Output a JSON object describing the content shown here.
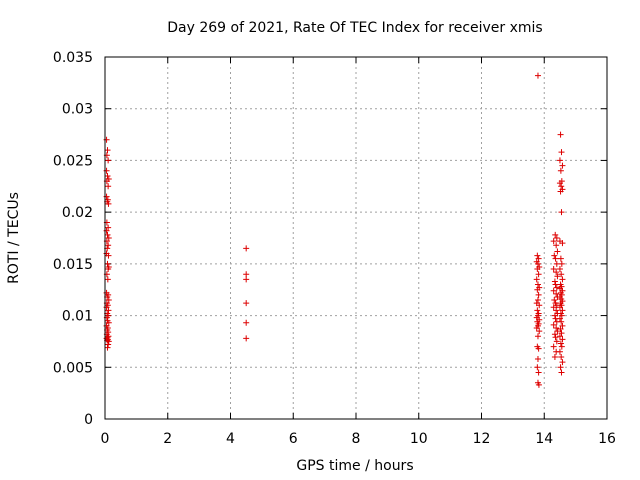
{
  "chart_data": {
    "type": "scatter",
    "title": "Day 269 of 2021, Rate Of TEC Index for receiver xmis",
    "xlabel": "GPS time / hours",
    "ylabel": "ROTI / TECUs",
    "xlim": [
      0,
      16
    ],
    "ylim": [
      0,
      0.035
    ],
    "x_ticks": [
      "0",
      "2",
      "4",
      "6",
      "8",
      "10",
      "12",
      "14",
      "16"
    ],
    "y_ticks": [
      "0",
      "0.005",
      "0.01",
      "0.015",
      "0.02",
      "0.025",
      "0.03",
      "0.035"
    ],
    "grid": true,
    "marker": "plus",
    "color": "#dd0000",
    "points": [
      [
        0.05,
        0.027
      ],
      [
        0.08,
        0.026
      ],
      [
        0.06,
        0.0255
      ],
      [
        0.1,
        0.025
      ],
      [
        0.05,
        0.024
      ],
      [
        0.08,
        0.0235
      ],
      [
        0.12,
        0.0232
      ],
      [
        0.06,
        0.023
      ],
      [
        0.1,
        0.0225
      ],
      [
        0.05,
        0.0215
      ],
      [
        0.09,
        0.0212
      ],
      [
        0.07,
        0.021
      ],
      [
        0.11,
        0.0208
      ],
      [
        0.06,
        0.019
      ],
      [
        0.1,
        0.0185
      ],
      [
        0.05,
        0.0182
      ],
      [
        0.08,
        0.0178
      ],
      [
        0.12,
        0.0175
      ],
      [
        0.06,
        0.0172
      ],
      [
        0.1,
        0.0168
      ],
      [
        0.07,
        0.0165
      ],
      [
        0.05,
        0.016
      ],
      [
        0.11,
        0.0158
      ],
      [
        0.08,
        0.015
      ],
      [
        0.12,
        0.0147
      ],
      [
        0.1,
        0.0145
      ],
      [
        0.06,
        0.014
      ],
      [
        0.09,
        0.0135
      ],
      [
        0.05,
        0.0122
      ],
      [
        0.1,
        0.012
      ],
      [
        0.07,
        0.0118
      ],
      [
        0.12,
        0.0115
      ],
      [
        0.06,
        0.0112
      ],
      [
        0.09,
        0.011
      ],
      [
        0.05,
        0.0108
      ],
      [
        0.11,
        0.0105
      ],
      [
        0.07,
        0.0102
      ],
      [
        0.1,
        0.01
      ],
      [
        0.06,
        0.0098
      ],
      [
        0.08,
        0.0095
      ],
      [
        0.12,
        0.0093
      ],
      [
        0.05,
        0.009
      ],
      [
        0.09,
        0.0088
      ],
      [
        0.07,
        0.0086
      ],
      [
        0.1,
        0.0084
      ],
      [
        0.06,
        0.0082
      ],
      [
        0.11,
        0.008
      ],
      [
        0.08,
        0.0079
      ],
      [
        0.05,
        0.0078
      ],
      [
        0.09,
        0.0077
      ],
      [
        0.07,
        0.0076
      ],
      [
        0.12,
        0.0075
      ],
      [
        0.1,
        0.0072
      ],
      [
        0.08,
        0.0069
      ],
      [
        4.5,
        0.0165
      ],
      [
        4.5,
        0.014
      ],
      [
        4.5,
        0.0135
      ],
      [
        4.5,
        0.0112
      ],
      [
        4.5,
        0.0093
      ],
      [
        4.5,
        0.0078
      ],
      [
        13.8,
        0.0332
      ],
      [
        13.78,
        0.0158
      ],
      [
        13.82,
        0.0155
      ],
      [
        13.76,
        0.0152
      ],
      [
        13.8,
        0.015
      ],
      [
        13.84,
        0.0147
      ],
      [
        13.78,
        0.0145
      ],
      [
        13.82,
        0.014
      ],
      [
        13.76,
        0.0135
      ],
      [
        13.8,
        0.013
      ],
      [
        13.84,
        0.0127
      ],
      [
        13.78,
        0.0125
      ],
      [
        13.82,
        0.012
      ],
      [
        13.8,
        0.0115
      ],
      [
        13.76,
        0.0112
      ],
      [
        13.84,
        0.011
      ],
      [
        13.78,
        0.0105
      ],
      [
        13.82,
        0.0102
      ],
      [
        13.8,
        0.01
      ],
      [
        13.76,
        0.0098
      ],
      [
        13.84,
        0.0096
      ],
      [
        13.78,
        0.0094
      ],
      [
        13.82,
        0.0092
      ],
      [
        13.8,
        0.009
      ],
      [
        13.76,
        0.0088
      ],
      [
        13.84,
        0.0085
      ],
      [
        13.8,
        0.008
      ],
      [
        13.78,
        0.007
      ],
      [
        13.82,
        0.0068
      ],
      [
        13.8,
        0.0058
      ],
      [
        13.78,
        0.005
      ],
      [
        13.82,
        0.0045
      ],
      [
        13.8,
        0.0035
      ],
      [
        13.83,
        0.0033
      ],
      [
        14.35,
        0.0178
      ],
      [
        14.4,
        0.0175
      ],
      [
        14.3,
        0.0172
      ],
      [
        14.38,
        0.0168
      ],
      [
        14.42,
        0.0162
      ],
      [
        14.32,
        0.0158
      ],
      [
        14.36,
        0.0155
      ],
      [
        14.4,
        0.015
      ],
      [
        14.3,
        0.0145
      ],
      [
        14.38,
        0.0142
      ],
      [
        14.42,
        0.0138
      ],
      [
        14.34,
        0.0133
      ],
      [
        14.36,
        0.013
      ],
      [
        14.4,
        0.0127
      ],
      [
        14.3,
        0.0124
      ],
      [
        14.38,
        0.0121
      ],
      [
        14.42,
        0.0118
      ],
      [
        14.32,
        0.0115
      ],
      [
        14.36,
        0.0112
      ],
      [
        14.4,
        0.011
      ],
      [
        14.3,
        0.0108
      ],
      [
        14.38,
        0.0105
      ],
      [
        14.42,
        0.0102
      ],
      [
        14.34,
        0.01
      ],
      [
        14.36,
        0.0097
      ],
      [
        14.4,
        0.0094
      ],
      [
        14.3,
        0.0091
      ],
      [
        14.38,
        0.0088
      ],
      [
        14.42,
        0.0085
      ],
      [
        14.34,
        0.0082
      ],
      [
        14.36,
        0.0079
      ],
      [
        14.4,
        0.0075
      ],
      [
        14.3,
        0.007
      ],
      [
        14.38,
        0.0065
      ],
      [
        14.34,
        0.006
      ],
      [
        14.52,
        0.0275
      ],
      [
        14.55,
        0.0258
      ],
      [
        14.5,
        0.025
      ],
      [
        14.58,
        0.0245
      ],
      [
        14.53,
        0.024
      ],
      [
        14.56,
        0.023
      ],
      [
        14.5,
        0.0228
      ],
      [
        14.54,
        0.0225
      ],
      [
        14.58,
        0.0222
      ],
      [
        14.52,
        0.022
      ],
      [
        14.55,
        0.02
      ],
      [
        14.5,
        0.0172
      ],
      [
        14.58,
        0.017
      ],
      [
        14.53,
        0.0155
      ],
      [
        14.56,
        0.015
      ],
      [
        14.5,
        0.0145
      ],
      [
        14.54,
        0.014
      ],
      [
        14.58,
        0.0135
      ],
      [
        14.52,
        0.013
      ],
      [
        14.55,
        0.0128
      ],
      [
        14.5,
        0.0126
      ],
      [
        14.58,
        0.0124
      ],
      [
        14.53,
        0.0122
      ],
      [
        14.56,
        0.012
      ],
      [
        14.5,
        0.0118
      ],
      [
        14.54,
        0.0116
      ],
      [
        14.58,
        0.0114
      ],
      [
        14.52,
        0.0112
      ],
      [
        14.55,
        0.011
      ],
      [
        14.5,
        0.0108
      ],
      [
        14.58,
        0.0105
      ],
      [
        14.53,
        0.0102
      ],
      [
        14.56,
        0.01
      ],
      [
        14.5,
        0.0097
      ],
      [
        14.54,
        0.0094
      ],
      [
        14.58,
        0.009
      ],
      [
        14.52,
        0.0087
      ],
      [
        14.55,
        0.0083
      ],
      [
        14.5,
        0.008
      ],
      [
        14.58,
        0.0077
      ],
      [
        14.53,
        0.0073
      ],
      [
        14.56,
        0.007
      ],
      [
        14.5,
        0.0065
      ],
      [
        14.54,
        0.006
      ],
      [
        14.58,
        0.0055
      ],
      [
        14.52,
        0.005
      ],
      [
        14.55,
        0.0045
      ]
    ]
  }
}
